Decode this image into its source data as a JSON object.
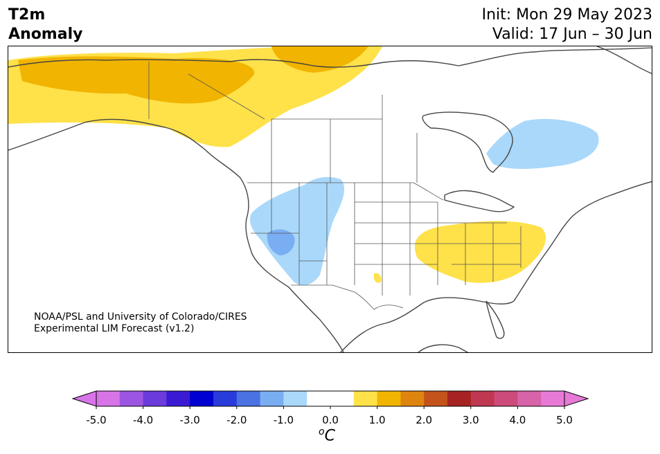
{
  "title": {
    "line1": "T2m",
    "line2": "Anomaly"
  },
  "init": "Init: Mon 29 May 2023",
  "valid": "Valid: 17 Jun – 30 Jun",
  "credit": {
    "line1": "NOAA/PSL and University of Colorado/CIRES",
    "line2": "Experimental LIM Forecast (v1.2)"
  },
  "colorbar": {
    "unit_prefix": "o",
    "unit_main": "C",
    "ticks": [
      "-5.0",
      "-4.0",
      "-3.0",
      "-2.0",
      "-1.0",
      "0.0",
      "1.0",
      "2.0",
      "3.0",
      "4.0",
      "5.0"
    ],
    "colors": [
      "#d774e8",
      "#9c55e0",
      "#6b3bdb",
      "#3a1bd3",
      "#0000d0",
      "#2a3bdc",
      "#4a72e3",
      "#7aaef2",
      "#aad8fa",
      "#ffffff",
      "#ffffff",
      "#ffe14a",
      "#f1b400",
      "#de8510",
      "#c4531b",
      "#a62322",
      "#c03752",
      "#cc4b7b",
      "#d763a8",
      "#e67ad6"
    ],
    "under_color": "#d774e8",
    "over_color": "#e67ad6"
  },
  "map_colors": {
    "warm_light": "#ffe14a",
    "warm_dark": "#f1b400",
    "cool_light": "#aad8fa",
    "cool_mid": "#7aaef2"
  }
}
